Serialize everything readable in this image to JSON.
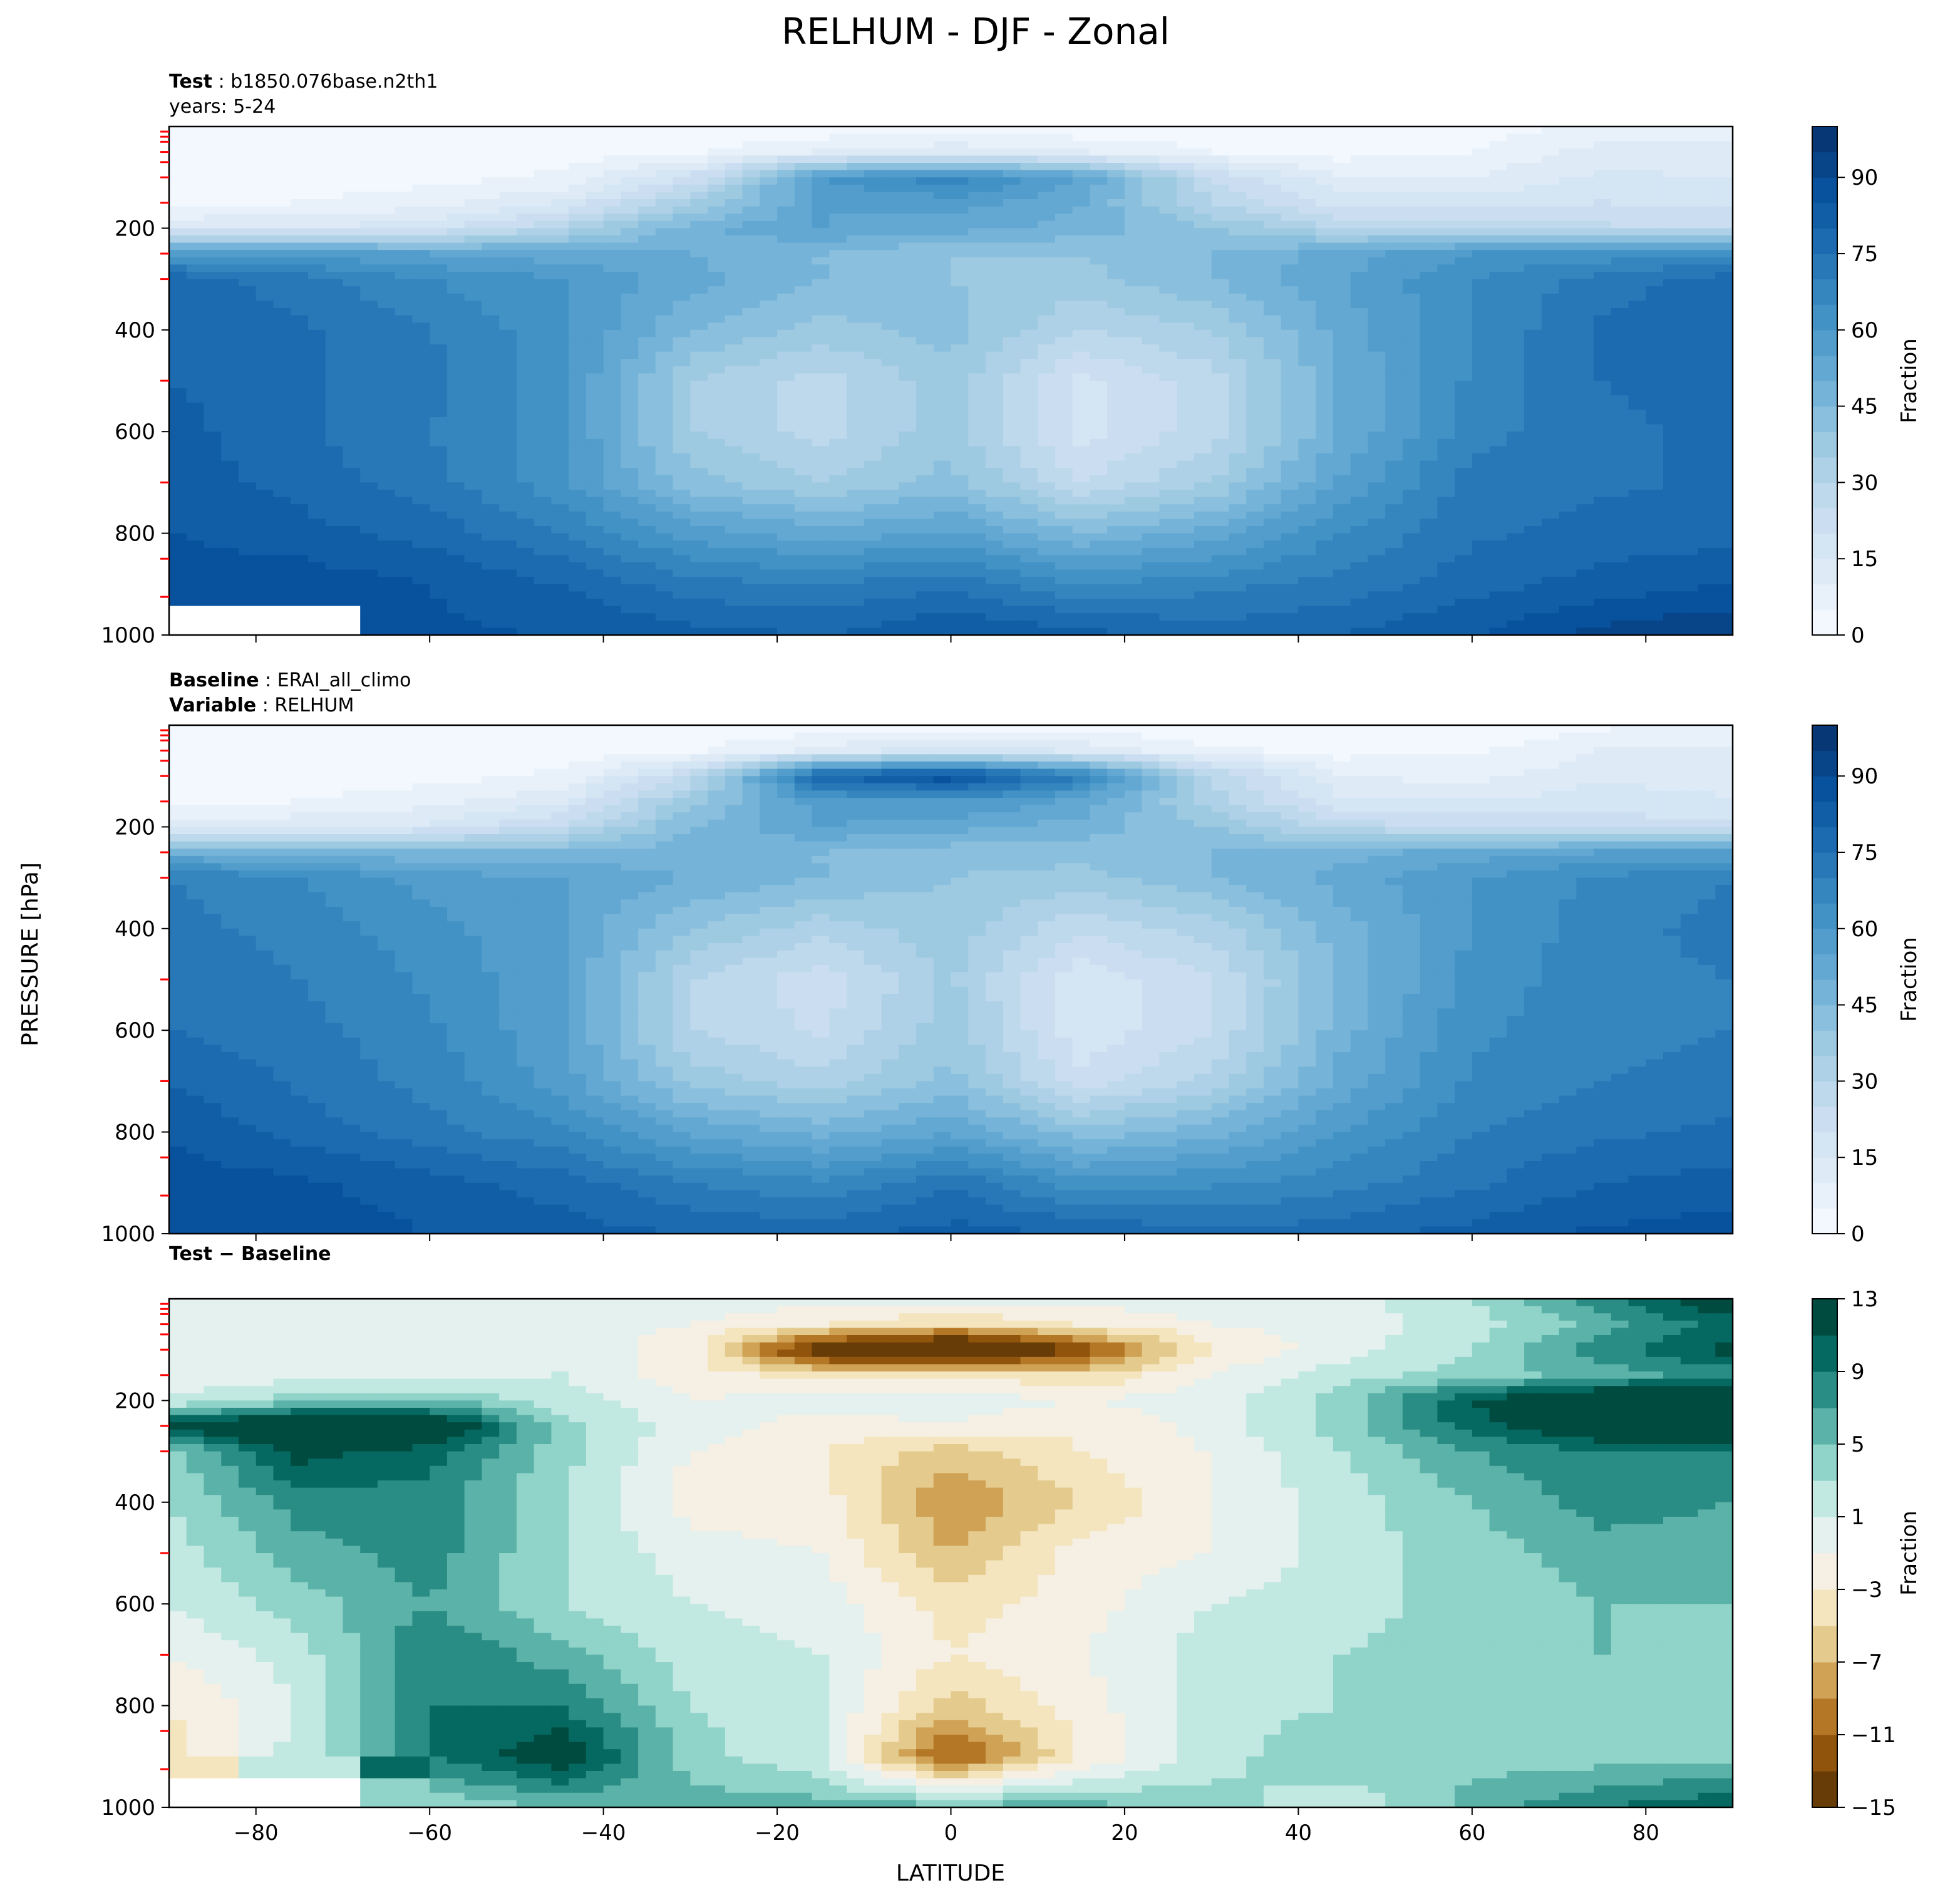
{
  "title": "RELHUM - DJF - Zonal",
  "ylabel": "PRESSURE [hPa]",
  "xlabel": "LATITUDE",
  "colors": {
    "blues": [
      "#f7fbff",
      "#deebf7",
      "#c6dbef",
      "#9ecae1",
      "#6baed6",
      "#4292c6",
      "#2171b5",
      "#08519c",
      "#08306b"
    ],
    "brbg": [
      "#543005",
      "#8c510a",
      "#bf812d",
      "#dfc27d",
      "#f6e8c3",
      "#f5f5f5",
      "#c7eae5",
      "#80cdc1",
      "#35978f",
      "#01665e",
      "#003c30"
    ],
    "missing": "#ffffff",
    "pressure_tick_marker": "#ff0000"
  },
  "chart_data": [
    {
      "type": "heatmap",
      "panel": "test",
      "label_bold": "Test",
      "label_text": "b1850.076base.n2th1",
      "label2_text": "years: 5-24",
      "colorbar_label": "Fraction",
      "colorbar_ticks": [
        0,
        15,
        30,
        45,
        60,
        75,
        90
      ],
      "colorbar_range": [
        0,
        100
      ],
      "colorbar_step": 5,
      "colorscale": "blues",
      "xlim": [
        -90,
        90
      ],
      "ylim": [
        1000,
        0
      ],
      "yticks": [
        200,
        400,
        600,
        800,
        1000
      ],
      "show_xticklabels": false,
      "grid": false,
      "lat": [
        -90,
        -75,
        -60,
        -45,
        -30,
        -15,
        0,
        15,
        30,
        45,
        60,
        75,
        90
      ],
      "pressure": [
        0,
        50,
        100,
        150,
        200,
        250,
        300,
        400,
        500,
        600,
        700,
        800,
        900,
        1000
      ],
      "values": [
        [
          1,
          1,
          1,
          1,
          1,
          1,
          1,
          1,
          1,
          1,
          2,
          6,
          8
        ],
        [
          1,
          1,
          1,
          2,
          4,
          10,
          14,
          10,
          5,
          3,
          5,
          12,
          12
        ],
        [
          2,
          2,
          3,
          6,
          20,
          60,
          68,
          55,
          25,
          10,
          10,
          16,
          15
        ],
        [
          4,
          5,
          8,
          15,
          35,
          55,
          58,
          50,
          30,
          18,
          18,
          20,
          18
        ],
        [
          14,
          15,
          18,
          30,
          48,
          55,
          52,
          48,
          40,
          30,
          28,
          26,
          25
        ],
        [
          60,
          58,
          55,
          52,
          50,
          45,
          40,
          40,
          45,
          52,
          60,
          62,
          64
        ],
        [
          78,
          72,
          65,
          60,
          52,
          45,
          40,
          38,
          45,
          55,
          65,
          72,
          78
        ],
        [
          80,
          76,
          70,
          62,
          45,
          38,
          42,
          30,
          35,
          52,
          65,
          76,
          80
        ],
        [
          80,
          76,
          72,
          62,
          35,
          28,
          38,
          18,
          28,
          50,
          66,
          75,
          78
        ],
        [
          82,
          76,
          70,
          62,
          35,
          28,
          38,
          18,
          28,
          50,
          68,
          74,
          76
        ],
        [
          83,
          78,
          72,
          62,
          42,
          35,
          42,
          25,
          35,
          56,
          72,
          74,
          76
        ],
        [
          85,
          82,
          78,
          70,
          58,
          52,
          56,
          45,
          52,
          65,
          74,
          77,
          78
        ],
        [
          88,
          88,
          85,
          80,
          72,
          70,
          74,
          65,
          68,
          72,
          78,
          82,
          85
        ],
        [
          null,
          null,
          86,
          85,
          82,
          80,
          85,
          82,
          78,
          80,
          85,
          92,
          95
        ]
      ]
    },
    {
      "type": "heatmap",
      "panel": "baseline",
      "label_bold": "Baseline",
      "label_text": "ERAI_all_climo",
      "label2_bold": "Variable",
      "label2_text": "RELHUM",
      "colorbar_label": "Fraction",
      "colorbar_ticks": [
        0,
        15,
        30,
        45,
        60,
        75,
        90
      ],
      "colorbar_range": [
        0,
        100
      ],
      "colorbar_step": 5,
      "colorscale": "blues",
      "xlim": [
        -90,
        90
      ],
      "ylim": [
        1000,
        0
      ],
      "yticks": [
        200,
        400,
        600,
        800,
        1000
      ],
      "show_xticklabels": false,
      "grid": false,
      "lat": [
        -90,
        -75,
        -60,
        -45,
        -30,
        -15,
        0,
        15,
        30,
        45,
        60,
        75,
        90
      ],
      "pressure": [
        0,
        50,
        100,
        150,
        200,
        250,
        300,
        400,
        500,
        600,
        700,
        800,
        900,
        1000
      ],
      "values": [
        [
          1,
          1,
          1,
          1,
          1,
          1,
          1,
          1,
          1,
          1,
          1,
          4,
          6
        ],
        [
          1,
          1,
          1,
          2,
          4,
          12,
          18,
          14,
          6,
          3,
          4,
          10,
          10
        ],
        [
          2,
          2,
          3,
          6,
          25,
          80,
          90,
          70,
          30,
          10,
          8,
          14,
          12
        ],
        [
          4,
          5,
          8,
          14,
          38,
          58,
          60,
          54,
          32,
          16,
          15,
          18,
          16
        ],
        [
          12,
          14,
          16,
          26,
          45,
          55,
          52,
          48,
          40,
          28,
          24,
          22,
          22
        ],
        [
          50,
          48,
          45,
          45,
          48,
          45,
          42,
          42,
          45,
          48,
          52,
          55,
          56
        ],
        [
          70,
          65,
          58,
          55,
          50,
          45,
          40,
          38,
          45,
          52,
          60,
          66,
          70
        ],
        [
          72,
          68,
          62,
          55,
          40,
          32,
          38,
          26,
          32,
          48,
          60,
          68,
          72
        ],
        [
          74,
          70,
          64,
          56,
          30,
          22,
          36,
          16,
          25,
          46,
          62,
          68,
          70
        ],
        [
          75,
          72,
          66,
          56,
          30,
          24,
          38,
          16,
          25,
          48,
          64,
          68,
          70
        ],
        [
          80,
          74,
          68,
          58,
          38,
          32,
          42,
          22,
          32,
          52,
          66,
          70,
          72
        ],
        [
          84,
          78,
          72,
          66,
          54,
          48,
          54,
          42,
          48,
          60,
          70,
          74,
          76
        ],
        [
          88,
          86,
          82,
          78,
          70,
          66,
          74,
          62,
          64,
          68,
          74,
          80,
          82
        ],
        [
          90,
          88,
          85,
          82,
          80,
          78,
          82,
          80,
          76,
          78,
          82,
          86,
          88
        ]
      ]
    },
    {
      "type": "heatmap",
      "panel": "difference",
      "label_bold": "Test − Baseline",
      "colorbar_label": "Fraction",
      "colorbar_ticks": [
        -15,
        -11,
        -7,
        -3,
        1,
        5,
        9,
        13
      ],
      "colorbar_range": [
        -15,
        13
      ],
      "colorbar_step": 2,
      "colorscale": "brbg",
      "xlim": [
        -90,
        90
      ],
      "ylim": [
        1000,
        0
      ],
      "yticks": [
        200,
        400,
        600,
        800,
        1000
      ],
      "xticks": [
        -80,
        -60,
        -40,
        -20,
        0,
        20,
        40,
        60,
        80
      ],
      "show_xticklabels": true,
      "grid": false,
      "lat": [
        -90,
        -75,
        -60,
        -45,
        -30,
        -15,
        0,
        15,
        30,
        45,
        60,
        75,
        90
      ],
      "pressure": [
        0,
        50,
        100,
        150,
        200,
        250,
        300,
        400,
        500,
        600,
        700,
        800,
        900,
        1000
      ],
      "values": [
        [
          0,
          0,
          0,
          0,
          0,
          0,
          0,
          0,
          0,
          0,
          3,
          8,
          14
        ],
        [
          0,
          0,
          0,
          0,
          -1,
          -3,
          -5,
          -3,
          -1,
          0,
          2,
          6,
          10
        ],
        [
          0,
          0,
          0,
          0,
          -2,
          -16,
          -20,
          -13,
          -3,
          0,
          3,
          8,
          12
        ],
        [
          0,
          0,
          0,
          1,
          -2,
          -4,
          -3,
          -5,
          -1,
          2,
          4,
          6,
          8
        ],
        [
          1,
          4,
          5,
          2,
          -1,
          0,
          0,
          -1,
          0,
          4,
          11,
          15,
          17
        ],
        [
          12,
          16,
          15,
          4,
          0,
          -2,
          -1,
          -3,
          0,
          4,
          10,
          14,
          15
        ],
        [
          4,
          12,
          10,
          4,
          -1,
          -3,
          -6,
          -3,
          -1,
          3,
          7,
          9,
          9
        ],
        [
          3,
          8,
          8,
          3,
          -2,
          -2,
          -9,
          -5,
          -1,
          2,
          5,
          8,
          7
        ],
        [
          2,
          6,
          8,
          3,
          0,
          -1,
          -7,
          -2,
          -1,
          2,
          4,
          6,
          6
        ],
        [
          1,
          4,
          7,
          3,
          1,
          0,
          -4,
          -2,
          1,
          2,
          4,
          5,
          5
        ],
        [
          -1,
          2,
          9,
          6,
          2,
          1,
          -3,
          -1,
          2,
          3,
          4,
          5,
          4
        ],
        [
          -3,
          1,
          9,
          9,
          3,
          1,
          -6,
          -2,
          2,
          3,
          3,
          4,
          4
        ],
        [
          -4,
          2,
          9,
          13,
          4,
          1,
          -12,
          -3,
          2,
          5,
          4,
          4,
          4
        ],
        [
          null,
          null,
          3,
          5,
          6,
          6,
          6,
          6,
          4,
          1,
          6,
          9,
          11
        ]
      ]
    }
  ]
}
